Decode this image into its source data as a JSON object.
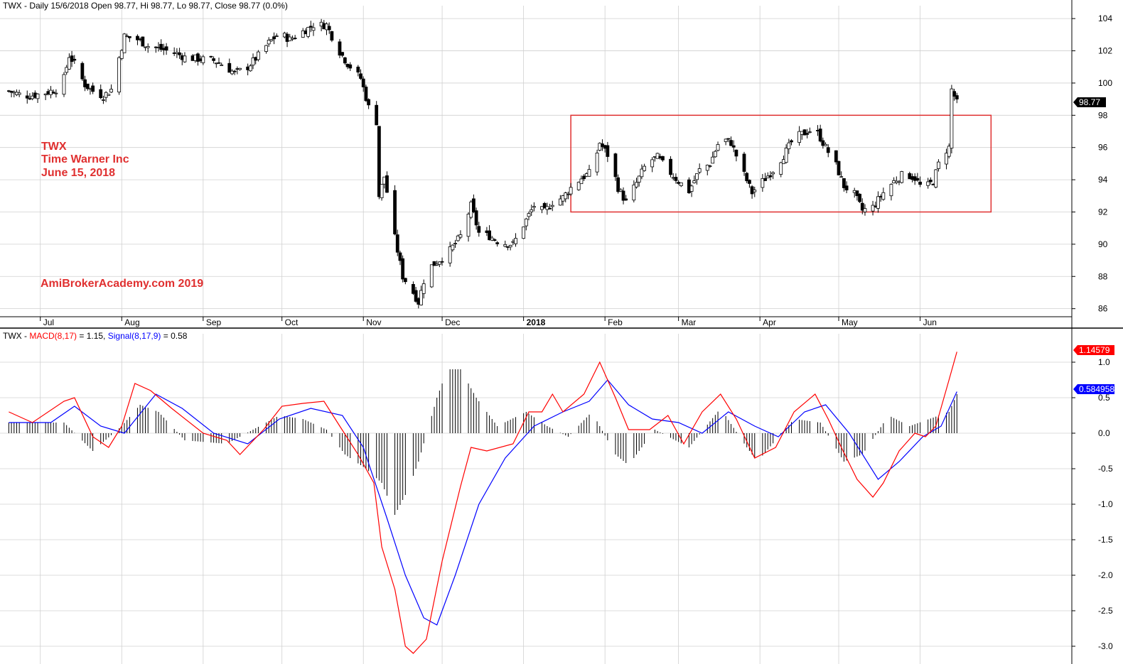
{
  "price_panel": {
    "header": "TWX - Daily 15/6/2018 Open 98.77, Hi 98.77, Lo 98.77, Close 98.77 (0.0%)",
    "annotations": [
      "TWX",
      "Time Warner Inc",
      "June 15, 2018"
    ],
    "watermark": "AmiBrokerAcademy.com  2019",
    "last_price_label": "98.77",
    "colors": {
      "annotation": "#e03030",
      "box": "#e03030",
      "candle": "#000000",
      "grid": "#d0d0d0"
    }
  },
  "macd_panel": {
    "header_prefix": "TWX - ",
    "macd_label": "MACD(8,17)",
    "macd_value_text": " = 1.15, ",
    "signal_label": "Signal(8,17,9)",
    "signal_value_text": " = 0.58",
    "macd_badge": "1.14579",
    "signal_badge": "0.584958",
    "colors": {
      "macd": "#ff0000",
      "signal": "#0000ff",
      "histogram": "#000000"
    }
  },
  "chart_data": [
    {
      "type": "candlestick",
      "title": "TWX - Daily 15/6/2018",
      "x_ticks": [
        "Jul",
        "Aug",
        "Sep",
        "Oct",
        "Nov",
        "Dec",
        "2018",
        "Feb",
        "Mar",
        "Apr",
        "May",
        "Jun"
      ],
      "y_ticks": [
        86,
        88,
        90,
        92,
        94,
        96,
        98,
        100,
        102,
        104
      ],
      "ylim": [
        85.5,
        104.8
      ],
      "range_box": {
        "x_from": "2018-01-19",
        "x_to": "2018-06-28",
        "y_from": 92,
        "y_to": 98
      },
      "close_path": [
        [
          "2017-06-19",
          99.5
        ],
        [
          "2017-06-23",
          99.3
        ],
        [
          "2017-06-27",
          99.2
        ],
        [
          "2017-07-03",
          99.4
        ],
        [
          "2017-07-07",
          99.6
        ],
        [
          "2017-07-10",
          100.3
        ],
        [
          "2017-07-12",
          101.7
        ],
        [
          "2017-07-14",
          101.2
        ],
        [
          "2017-07-18",
          99.9
        ],
        [
          "2017-07-21",
          99.5
        ],
        [
          "2017-07-25",
          99.2
        ],
        [
          "2017-07-28",
          99.6
        ],
        [
          "2017-08-02",
          102.9
        ],
        [
          "2017-08-07",
          102.7
        ],
        [
          "2017-08-11",
          102.3
        ],
        [
          "2017-08-16",
          102.1
        ],
        [
          "2017-08-21",
          101.9
        ],
        [
          "2017-08-25",
          101.6
        ],
        [
          "2017-08-30",
          101.5
        ],
        [
          "2017-09-05",
          101.4
        ],
        [
          "2017-09-09",
          101.1
        ],
        [
          "2017-09-13",
          100.6
        ],
        [
          "2017-09-18",
          101.0
        ],
        [
          "2017-09-22",
          101.7
        ],
        [
          "2017-09-26",
          102.5
        ],
        [
          "2017-09-30",
          103.1
        ],
        [
          "2017-10-04",
          102.7
        ],
        [
          "2017-10-09",
          103.2
        ],
        [
          "2017-10-13",
          103.6
        ],
        [
          "2017-10-18",
          103.6
        ],
        [
          "2017-10-22",
          102.2
        ],
        [
          "2017-10-26",
          101.2
        ],
        [
          "2017-10-31",
          100.3
        ],
        [
          "2017-11-03",
          98.5
        ],
        [
          "2017-11-06",
          97.6
        ],
        [
          "2017-11-07",
          93.0
        ],
        [
          "2017-11-09",
          94.2
        ],
        [
          "2017-11-13",
          90.4
        ],
        [
          "2017-11-16",
          88.0
        ],
        [
          "2017-11-20",
          87.0
        ],
        [
          "2017-11-22",
          86.4
        ],
        [
          "2017-11-25",
          88.4
        ],
        [
          "2017-11-29",
          88.9
        ],
        [
          "2017-12-03",
          89.4
        ],
        [
          "2017-12-08",
          90.5
        ],
        [
          "2017-12-12",
          92.4
        ],
        [
          "2017-12-15",
          90.7
        ],
        [
          "2017-12-19",
          90.5
        ],
        [
          "2017-12-23",
          90.1
        ],
        [
          "2017-12-28",
          90.0
        ],
        [
          "2018-01-02",
          91.5
        ],
        [
          "2018-01-05",
          92.4
        ],
        [
          "2018-01-09",
          92.0
        ],
        [
          "2018-01-12",
          92.6
        ],
        [
          "2018-01-16",
          92.9
        ],
        [
          "2018-01-19",
          93.5
        ],
        [
          "2018-01-23",
          94.1
        ],
        [
          "2018-01-27",
          94.5
        ],
        [
          "2018-01-30",
          96.3
        ],
        [
          "2018-02-03",
          95.3
        ],
        [
          "2018-02-06",
          93.5
        ],
        [
          "2018-02-09",
          92.6
        ],
        [
          "2018-02-13",
          93.8
        ],
        [
          "2018-02-17",
          95.1
        ],
        [
          "2018-02-21",
          95.4
        ],
        [
          "2018-02-25",
          94.6
        ],
        [
          "2018-03-01",
          93.9
        ],
        [
          "2018-03-05",
          93.3
        ],
        [
          "2018-03-09",
          94.6
        ],
        [
          "2018-03-13",
          95.0
        ],
        [
          "2018-03-17",
          96.6
        ],
        [
          "2018-03-21",
          96.3
        ],
        [
          "2018-03-25",
          94.7
        ],
        [
          "2018-03-29",
          93.2
        ],
        [
          "2018-04-02",
          93.9
        ],
        [
          "2018-04-06",
          94.6
        ],
        [
          "2018-04-10",
          95.5
        ],
        [
          "2018-04-14",
          96.6
        ],
        [
          "2018-04-18",
          96.9
        ],
        [
          "2018-04-22",
          97.2
        ],
        [
          "2018-04-26",
          96.0
        ],
        [
          "2018-04-30",
          94.9
        ],
        [
          "2018-05-03",
          93.6
        ],
        [
          "2018-05-07",
          93.1
        ],
        [
          "2018-05-10",
          92.1
        ],
        [
          "2018-05-14",
          92.3
        ],
        [
          "2018-05-18",
          93.2
        ],
        [
          "2018-05-22",
          93.9
        ],
        [
          "2018-05-26",
          94.4
        ],
        [
          "2018-05-30",
          94.1
        ],
        [
          "2018-06-02",
          93.4
        ],
        [
          "2018-06-06",
          93.9
        ],
        [
          "2018-06-09",
          95.5
        ],
        [
          "2018-06-12",
          96.0
        ],
        [
          "2018-06-13",
          99.6
        ],
        [
          "2018-06-15",
          98.77
        ]
      ]
    },
    {
      "type": "line",
      "title": "MACD(8,17), Signal(8,17,9)",
      "y_ticks": [
        1.0,
        0.5,
        0.0,
        -0.5,
        -1.0,
        -1.5,
        -2.0,
        -2.5,
        -3.0
      ],
      "ylim": [
        -3.25,
        1.4
      ],
      "series": [
        {
          "name": "MACD(8,17)",
          "points": [
            [
              "2017-06-19",
              0.3
            ],
            [
              "2017-06-28",
              0.15
            ],
            [
              "2017-07-10",
              0.45
            ],
            [
              "2017-07-14",
              0.5
            ],
            [
              "2017-07-21",
              -0.05
            ],
            [
              "2017-07-27",
              -0.2
            ],
            [
              "2017-08-01",
              0.1
            ],
            [
              "2017-08-06",
              0.7
            ],
            [
              "2017-08-12",
              0.6
            ],
            [
              "2017-08-20",
              0.35
            ],
            [
              "2017-09-01",
              0.0
            ],
            [
              "2017-09-10",
              -0.1
            ],
            [
              "2017-09-15",
              -0.3
            ],
            [
              "2017-09-24",
              0.05
            ],
            [
              "2017-10-01",
              0.38
            ],
            [
              "2017-10-09",
              0.42
            ],
            [
              "2017-10-17",
              0.45
            ],
            [
              "2017-10-23",
              0.1
            ],
            [
              "2017-10-30",
              -0.3
            ],
            [
              "2017-11-05",
              -0.7
            ],
            [
              "2017-11-08",
              -1.6
            ],
            [
              "2017-11-13",
              -2.2
            ],
            [
              "2017-11-17",
              -3.0
            ],
            [
              "2017-11-20",
              -3.1
            ],
            [
              "2017-11-25",
              -2.9
            ],
            [
              "2017-12-01",
              -1.8
            ],
            [
              "2017-12-08",
              -0.75
            ],
            [
              "2017-12-12",
              -0.2
            ],
            [
              "2017-12-18",
              -0.25
            ],
            [
              "2017-12-28",
              -0.15
            ],
            [
              "2018-01-03",
              0.3
            ],
            [
              "2018-01-08",
              0.3
            ],
            [
              "2018-01-12",
              0.55
            ],
            [
              "2018-01-16",
              0.3
            ],
            [
              "2018-01-24",
              0.55
            ],
            [
              "2018-01-30",
              1.0
            ],
            [
              "2018-02-05",
              0.5
            ],
            [
              "2018-02-10",
              0.05
            ],
            [
              "2018-02-18",
              0.05
            ],
            [
              "2018-02-25",
              0.25
            ],
            [
              "2018-03-03",
              -0.15
            ],
            [
              "2018-03-10",
              0.3
            ],
            [
              "2018-03-17",
              0.55
            ],
            [
              "2018-03-23",
              0.2
            ],
            [
              "2018-03-30",
              -0.35
            ],
            [
              "2018-04-07",
              -0.2
            ],
            [
              "2018-04-14",
              0.3
            ],
            [
              "2018-04-22",
              0.55
            ],
            [
              "2018-04-27",
              0.2
            ],
            [
              "2018-05-02",
              -0.2
            ],
            [
              "2018-05-08",
              -0.65
            ],
            [
              "2018-05-14",
              -0.9
            ],
            [
              "2018-05-18",
              -0.7
            ],
            [
              "2018-05-24",
              -0.25
            ],
            [
              "2018-05-30",
              0.0
            ],
            [
              "2018-06-03",
              -0.05
            ],
            [
              "2018-06-07",
              0.1
            ],
            [
              "2018-06-12",
              0.75
            ],
            [
              "2018-06-15",
              1.14579
            ]
          ]
        },
        {
          "name": "Signal(8,17,9)",
          "points": [
            [
              "2017-06-19",
              0.15
            ],
            [
              "2017-07-05",
              0.15
            ],
            [
              "2017-07-14",
              0.38
            ],
            [
              "2017-07-24",
              0.1
            ],
            [
              "2017-08-02",
              0.0
            ],
            [
              "2017-08-14",
              0.55
            ],
            [
              "2017-08-24",
              0.35
            ],
            [
              "2017-09-05",
              0.0
            ],
            [
              "2017-09-18",
              -0.15
            ],
            [
              "2017-09-30",
              0.2
            ],
            [
              "2017-10-12",
              0.35
            ],
            [
              "2017-10-24",
              0.25
            ],
            [
              "2017-11-01",
              -0.2
            ],
            [
              "2017-11-10",
              -1.2
            ],
            [
              "2017-11-17",
              -2.0
            ],
            [
              "2017-11-24",
              -2.6
            ],
            [
              "2017-11-29",
              -2.7
            ],
            [
              "2017-12-06",
              -2.0
            ],
            [
              "2017-12-15",
              -1.0
            ],
            [
              "2017-12-25",
              -0.35
            ],
            [
              "2018-01-05",
              0.1
            ],
            [
              "2018-01-16",
              0.3
            ],
            [
              "2018-01-26",
              0.45
            ],
            [
              "2018-02-02",
              0.75
            ],
            [
              "2018-02-10",
              0.4
            ],
            [
              "2018-02-19",
              0.2
            ],
            [
              "2018-03-01",
              0.15
            ],
            [
              "2018-03-10",
              0.0
            ],
            [
              "2018-03-20",
              0.3
            ],
            [
              "2018-03-30",
              0.1
            ],
            [
              "2018-04-08",
              -0.05
            ],
            [
              "2018-04-18",
              0.3
            ],
            [
              "2018-04-26",
              0.4
            ],
            [
              "2018-05-05",
              0.0
            ],
            [
              "2018-05-16",
              -0.65
            ],
            [
              "2018-05-24",
              -0.4
            ],
            [
              "2018-06-02",
              -0.05
            ],
            [
              "2018-06-09",
              0.1
            ],
            [
              "2018-06-15",
              0.584958
            ]
          ]
        },
        {
          "name": "Histogram",
          "type": "bar",
          "points": [
            [
              "2017-07-10",
              0.15
            ],
            [
              "2017-07-21",
              -0.25
            ],
            [
              "2017-08-01",
              0.1
            ],
            [
              "2017-08-08",
              0.4
            ],
            [
              "2017-08-15",
              0.3
            ],
            [
              "2017-08-25",
              -0.1
            ],
            [
              "2017-09-10",
              -0.15
            ],
            [
              "2017-09-30",
              0.25
            ],
            [
              "2017-10-09",
              0.2
            ],
            [
              "2017-10-18",
              0.05
            ],
            [
              "2017-10-25",
              -0.3
            ],
            [
              "2017-11-02",
              -0.5
            ],
            [
              "2017-11-08",
              -0.7
            ],
            [
              "2017-11-13",
              -1.15
            ],
            [
              "2017-11-18",
              -0.8
            ],
            [
              "2017-11-22",
              -0.4
            ],
            [
              "2017-11-29",
              0.5
            ],
            [
              "2017-12-03",
              0.9
            ],
            [
              "2017-12-08",
              0.9
            ],
            [
              "2017-12-14",
              0.5
            ],
            [
              "2017-12-22",
              0.1
            ],
            [
              "2018-01-02",
              0.3
            ],
            [
              "2018-01-10",
              0.1
            ],
            [
              "2018-01-18",
              -0.05
            ],
            [
              "2018-01-27",
              0.3
            ],
            [
              "2018-02-05",
              -0.3
            ],
            [
              "2018-02-10",
              -0.45
            ],
            [
              "2018-02-20",
              0.05
            ],
            [
              "2018-03-05",
              -0.2
            ],
            [
              "2018-03-17",
              0.35
            ],
            [
              "2018-03-27",
              -0.2
            ],
            [
              "2018-03-31",
              -0.4
            ],
            [
              "2018-04-14",
              0.2
            ],
            [
              "2018-04-24",
              0.15
            ],
            [
              "2018-05-03",
              -0.4
            ],
            [
              "2018-05-10",
              -0.3
            ],
            [
              "2018-05-20",
              0.25
            ],
            [
              "2018-05-28",
              0.1
            ],
            [
              "2018-06-12",
              0.3
            ],
            [
              "2018-06-15",
              0.55
            ]
          ]
        }
      ]
    }
  ]
}
